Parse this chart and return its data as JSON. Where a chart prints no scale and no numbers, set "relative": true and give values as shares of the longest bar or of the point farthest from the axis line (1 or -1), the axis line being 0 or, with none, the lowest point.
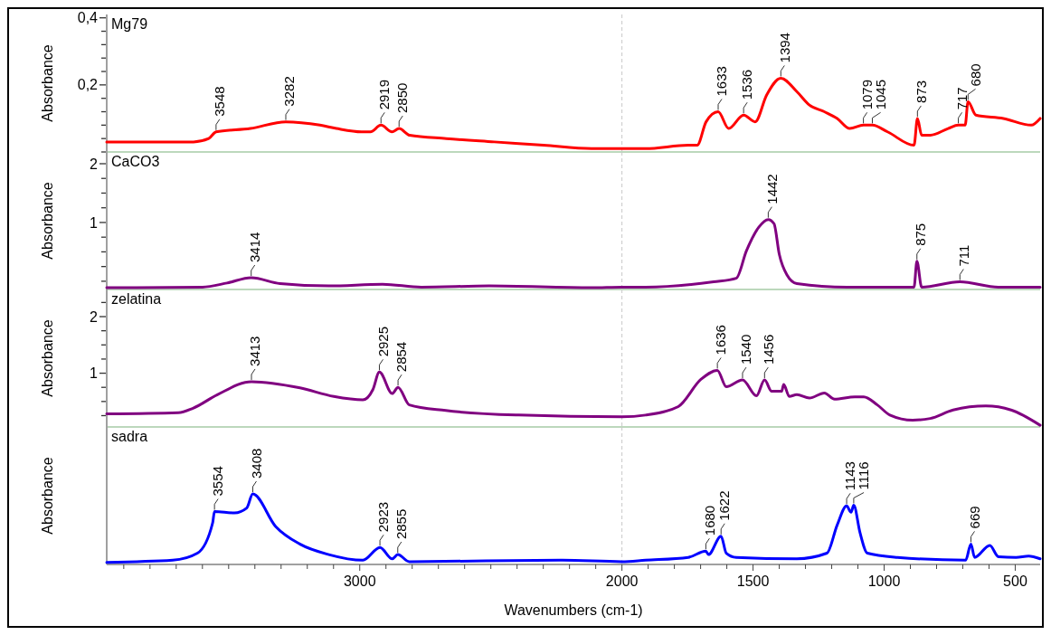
{
  "chart_data": [
    {
      "type": "line",
      "title": "Mg79",
      "ylabel": "Absorbance",
      "color": "#ff0000",
      "tick_labels": "y",
      "xlim": [
        3965,
        405
      ],
      "ylim": [
        0,
        0.41
      ],
      "yticks": [
        {
          "value": 0,
          "label": null
        },
        {
          "value": 0.04,
          "label": null
        },
        {
          "value": 0.08,
          "label": null
        },
        {
          "value": 0.12,
          "label": null
        },
        {
          "value": 0.16,
          "label": null
        },
        {
          "value": 0.2,
          "label": "0,2"
        },
        {
          "value": 0.24,
          "label": null
        },
        {
          "value": 0.28,
          "label": null
        },
        {
          "value": 0.32,
          "label": null
        },
        {
          "value": 0.36,
          "label": null
        },
        {
          "value": 0.4,
          "label": "0,4"
        }
      ],
      "x": [
        3965,
        3634,
        3576,
        3548,
        3417,
        3282,
        3152,
        3089,
        2993,
        2959,
        2919,
        2877,
        2850,
        2810,
        2670,
        2487,
        2299,
        2116,
        2000,
        1910,
        1747,
        1713,
        1679,
        1633,
        1593,
        1536,
        1492,
        1448,
        1394,
        1333,
        1285,
        1228,
        1179,
        1131,
        1079,
        1045,
        987,
        886,
        873,
        857,
        824,
        756,
        717,
        691,
        680,
        650,
        545,
        439,
        405
      ],
      "values": [
        0.03,
        0.03,
        0.04,
        0.06,
        0.07,
        0.09,
        0.08,
        0.07,
        0.06,
        0.06,
        0.08,
        0.06,
        0.07,
        0.05,
        0.04,
        0.03,
        0.02,
        0.01,
        0.01,
        0.01,
        0.02,
        0.02,
        0.09,
        0.12,
        0.07,
        0.11,
        0.09,
        0.17,
        0.22,
        0.18,
        0.14,
        0.12,
        0.1,
        0.07,
        0.08,
        0.08,
        0.06,
        0.02,
        0.1,
        0.05,
        0.05,
        0.07,
        0.08,
        0.08,
        0.15,
        0.11,
        0.1,
        0.08,
        0.1
      ],
      "annotations": [
        {
          "text": "3548",
          "x": 3548,
          "y": 0.06
        },
        {
          "text": "3282",
          "x": 3282,
          "y": 0.09
        },
        {
          "text": "2919",
          "x": 2919,
          "y": 0.08
        },
        {
          "text": "2850",
          "x": 2850,
          "y": 0.07
        },
        {
          "text": "1633",
          "x": 1633,
          "y": 0.12
        },
        {
          "text": "1536",
          "x": 1536,
          "y": 0.11
        },
        {
          "text": "1394",
          "x": 1394,
          "y": 0.22
        },
        {
          "text": "1079",
          "x": 1079,
          "y": 0.08
        },
        {
          "text": "1045",
          "x": 1045,
          "y": 0.08
        },
        {
          "text": "873",
          "x": 873,
          "y": 0.1
        },
        {
          "text": "717",
          "x": 717,
          "y": 0.08
        },
        {
          "text": "680",
          "x": 680,
          "y": 0.15
        }
      ],
      "ref_lines": [
        {
          "axis": "x",
          "value": 2000,
          "color": "#c8c8c8",
          "line_style": "dashed"
        }
      ]
    },
    {
      "type": "line",
      "title": "CaCO3",
      "ylabel": "Absorbance",
      "color": "#800080",
      "tick_labels": "y",
      "xlim": [
        3965,
        405
      ],
      "ylim": [
        -0.14,
        2.2
      ],
      "yticks": [
        {
          "value": 0,
          "label": null
        },
        {
          "value": 0.25,
          "label": null
        },
        {
          "value": 0.5,
          "label": null
        },
        {
          "value": 0.75,
          "label": null
        },
        {
          "value": 1,
          "label": "1"
        },
        {
          "value": 1.25,
          "label": null
        },
        {
          "value": 1.5,
          "label": null
        },
        {
          "value": 1.75,
          "label": null
        },
        {
          "value": 2,
          "label": "2"
        }
      ],
      "x": [
        3965,
        3600,
        3506,
        3414,
        3304,
        3118,
        2913,
        2765,
        2506,
        2116,
        2000,
        1910,
        1650,
        1564,
        1525,
        1478,
        1442,
        1420,
        1400,
        1371,
        1333,
        1141,
        886,
        875,
        857,
        711,
        564,
        405
      ],
      "values": [
        -0.11,
        -0.1,
        -0.03,
        0.06,
        -0.04,
        -0.08,
        -0.05,
        -0.1,
        -0.08,
        -0.11,
        -0.1,
        -0.1,
        -0.01,
        0.05,
        0.52,
        0.92,
        1.05,
        0.98,
        0.46,
        0.11,
        -0.04,
        -0.1,
        -0.1,
        0.34,
        -0.1,
        -0.01,
        -0.1,
        -0.1
      ],
      "annotations": [
        {
          "text": "3414",
          "x": 3414,
          "y": 0.06
        },
        {
          "text": "1442",
          "x": 1442,
          "y": 1.05
        },
        {
          "text": "875",
          "x": 875,
          "y": 0.34
        },
        {
          "text": "711",
          "x": 711,
          "y": -0.01
        }
      ],
      "ref_lines": [
        {
          "axis": "x",
          "value": 2000,
          "color": "#c8c8c8",
          "line_style": "dashed"
        }
      ]
    },
    {
      "type": "line",
      "title": "zelatina",
      "ylabel": "Absorbance",
      "color": "#800080",
      "tick_labels": "y",
      "xlim": [
        3965,
        405
      ],
      "ylim": [
        0.05,
        2.48
      ],
      "yticks": [
        {
          "value": 0.25,
          "label": null
        },
        {
          "value": 0.5,
          "label": null
        },
        {
          "value": 0.75,
          "label": null
        },
        1,
        {
          "value": 1.25,
          "label": null
        },
        {
          "value": 1.5,
          "label": null
        },
        {
          "value": 1.75,
          "label": null
        },
        2,
        {
          "value": 2.25,
          "label": null
        }
      ],
      "x": [
        3965,
        3692,
        3636,
        3543,
        3413,
        3228,
        3099,
        2988,
        2950,
        2925,
        2876,
        2854,
        2811,
        2672,
        2394,
        2000,
        1910,
        1785,
        1699,
        1636,
        1602,
        1540,
        1487,
        1456,
        1429,
        1391,
        1383,
        1362,
        1333,
        1285,
        1228,
        1189,
        1112,
        1078,
        1026,
        978,
        891,
        824,
        737,
        612,
        516,
        405
      ],
      "values": [
        0.28,
        0.3,
        0.38,
        0.62,
        0.85,
        0.74,
        0.59,
        0.53,
        0.71,
        1.02,
        0.64,
        0.75,
        0.44,
        0.34,
        0.26,
        0.23,
        0.26,
        0.41,
        0.89,
        1.05,
        0.76,
        0.88,
        0.6,
        0.88,
        0.68,
        0.68,
        0.8,
        0.59,
        0.62,
        0.56,
        0.65,
        0.54,
        0.58,
        0.58,
        0.44,
        0.26,
        0.17,
        0.2,
        0.35,
        0.42,
        0.35,
        0.08
      ],
      "annotations": [
        {
          "text": "3413",
          "x": 3413,
          "y": 0.85
        },
        {
          "text": "2925",
          "x": 2925,
          "y": 1.02
        },
        {
          "text": "2854",
          "x": 2854,
          "y": 0.75
        },
        {
          "text": "1636",
          "x": 1636,
          "y": 1.05
        },
        {
          "text": "1540",
          "x": 1540,
          "y": 0.88
        },
        {
          "text": "1456",
          "x": 1456,
          "y": 0.88
        }
      ],
      "ref_lines": [
        {
          "axis": "x",
          "value": 2000,
          "color": "#c8c8c8",
          "line_style": "dashed"
        }
      ]
    },
    {
      "type": "line",
      "title": "sadra",
      "ylabel": "Absorbance",
      "xlabel": "Wavenumbers (cm-1)",
      "color": "#0000ff",
      "relative": true,
      "xlim": [
        3965,
        405
      ],
      "xticks": [
        {
          "value": 3900,
          "label": null
        },
        {
          "value": 3800,
          "label": null
        },
        {
          "value": 3700,
          "label": null
        },
        {
          "value": 3600,
          "label": null
        },
        {
          "value": 3500,
          "label": null
        },
        {
          "value": 3400,
          "label": null
        },
        {
          "value": 3300,
          "label": null
        },
        {
          "value": 3200,
          "label": null
        },
        {
          "value": 3100,
          "label": null
        },
        3000,
        {
          "value": 2900,
          "label": null
        },
        {
          "value": 2800,
          "label": null
        },
        {
          "value": 2700,
          "label": null
        },
        {
          "value": 2600,
          "label": null
        },
        {
          "value": 2500,
          "label": null
        },
        {
          "value": 2400,
          "label": null
        },
        {
          "value": 2300,
          "label": null
        },
        {
          "value": 2200,
          "label": null
        },
        {
          "value": 2100,
          "label": null
        },
        2000,
        {
          "value": 1900,
          "label": null
        },
        {
          "value": 1800,
          "label": null
        },
        {
          "value": 1700,
          "label": null
        },
        {
          "value": 1600,
          "label": null
        },
        1500,
        {
          "value": 1400,
          "label": null
        },
        {
          "value": 1300,
          "label": null
        },
        {
          "value": 1200,
          "label": null
        },
        {
          "value": 1100,
          "label": null
        },
        1000,
        {
          "value": 900,
          "label": null
        },
        {
          "value": 800,
          "label": null
        },
        {
          "value": 700,
          "label": null
        },
        {
          "value": 600,
          "label": null
        },
        500
      ],
      "x": [
        3965,
        3713,
        3619,
        3561,
        3554,
        3478,
        3431,
        3408,
        3321,
        3229,
        3118,
        2988,
        2923,
        2876,
        2855,
        2811,
        2227,
        2000,
        1910,
        1747,
        1680,
        1670,
        1622,
        1602,
        1564,
        1333,
        1218,
        1179,
        1143,
        1126,
        1116,
        1092,
        1064,
        949,
        689,
        669,
        655,
        597,
        564,
        497,
        449,
        405
      ],
      "values": [
        0.03,
        0.06,
        0.16,
        0.59,
        0.75,
        0.73,
        0.8,
        1,
        0.54,
        0.29,
        0.14,
        0.06,
        0.24,
        0.08,
        0.14,
        0.04,
        0.06,
        0.04,
        0.06,
        0.1,
        0.19,
        0.14,
        0.4,
        0.16,
        0.1,
        0.08,
        0.16,
        0.56,
        0.83,
        0.74,
        0.84,
        0.45,
        0.16,
        0.1,
        0.06,
        0.29,
        0.1,
        0.27,
        0.11,
        0.1,
        0.12,
        0.08
      ],
      "annotations": [
        {
          "text": "3554",
          "x": 3554,
          "y": 0.75
        },
        {
          "text": "3408",
          "x": 3408,
          "y": 1
        },
        {
          "text": "2923",
          "x": 2923,
          "y": 0.24
        },
        {
          "text": "2855",
          "x": 2855,
          "y": 0.14
        },
        {
          "text": "1680",
          "x": 1680,
          "y": 0.19
        },
        {
          "text": "1622",
          "x": 1622,
          "y": 0.4
        },
        {
          "text": "1143",
          "x": 1143,
          "y": 0.83
        },
        {
          "text": "1116",
          "x": 1116,
          "y": 0.84
        },
        {
          "text": "669",
          "x": 669,
          "y": 0.29
        }
      ],
      "ref_lines": [
        {
          "axis": "x",
          "value": 2000,
          "color": "#c8c8c8",
          "line_style": "dashed"
        }
      ]
    }
  ]
}
